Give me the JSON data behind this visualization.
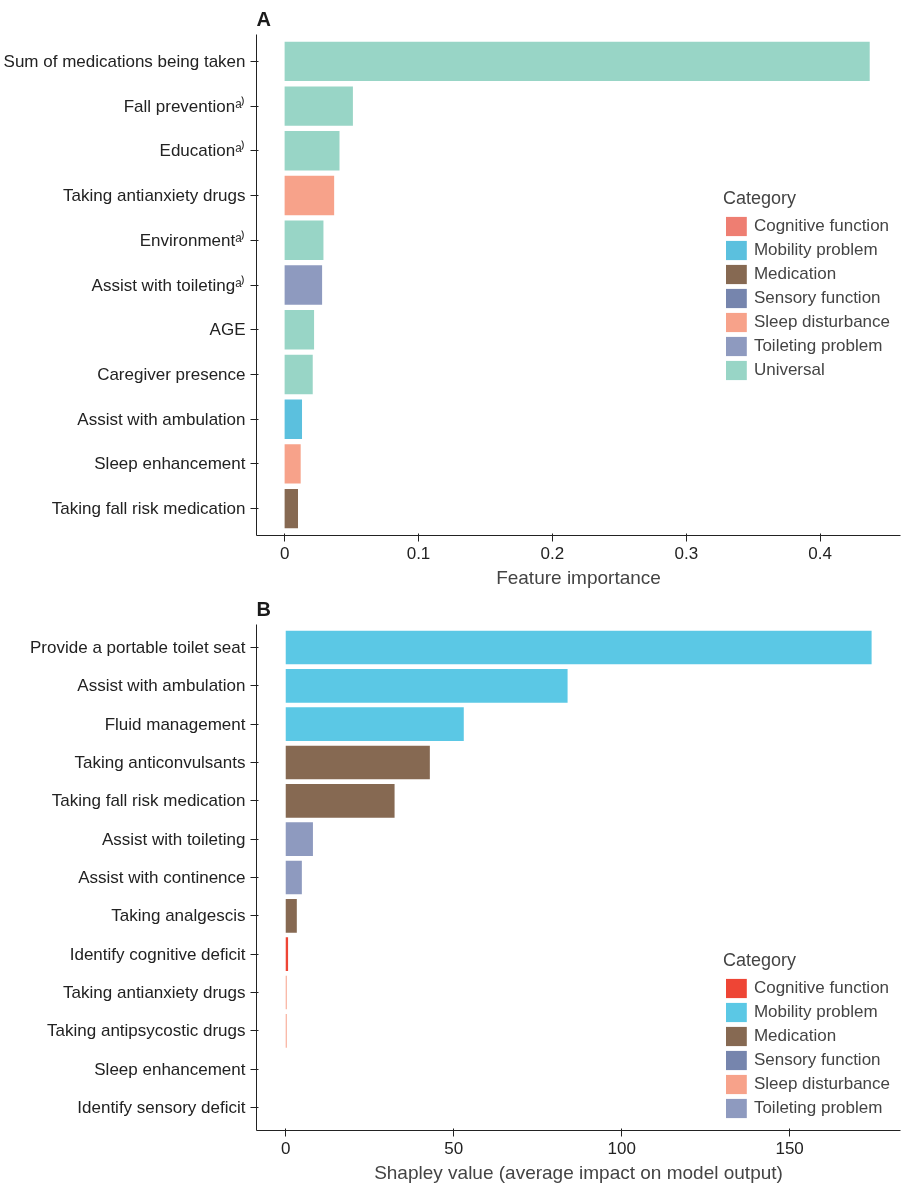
{
  "chart_data": [
    {
      "type": "bar",
      "title": "A",
      "orientation": "horizontal",
      "xlabel": "Feature importance",
      "legend_title": "Category",
      "legend": "right",
      "grid": false,
      "categories": [
        "Sum of medications being taken",
        "Fall preventionᵃ⁾",
        "Educationᵃ⁾",
        "Taking antianxiety drugs",
        "Environmentᵃ⁾",
        "Assist with toiletingᵃ⁾",
        "AGE",
        "Caregiver presence",
        "Assist with ambulation",
        "Sleep enhancement",
        "Taking fall risk medication"
      ],
      "xlim": [
        -0.021,
        0.46
      ],
      "xticks": [
        0,
        0.1,
        0.2,
        0.3,
        0.4
      ],
      "series": [
        {
          "name": "Cognitive function",
          "color": "#ee7e72",
          "values": [
            null,
            null,
            null,
            null,
            null,
            null,
            null,
            null,
            null,
            null,
            null
          ]
        },
        {
          "name": "Mobility problem",
          "color": "#5bc0de",
          "values": [
            null,
            null,
            null,
            null,
            null,
            null,
            null,
            null,
            0.013,
            null,
            null
          ]
        },
        {
          "name": "Medication",
          "color": "#866952",
          "values": [
            null,
            null,
            null,
            null,
            null,
            null,
            null,
            null,
            null,
            null,
            0.01
          ]
        },
        {
          "name": "Sensory function",
          "color": "#7685ad",
          "values": [
            null,
            null,
            null,
            null,
            null,
            null,
            null,
            null,
            null,
            null,
            null
          ]
        },
        {
          "name": "Sleep disturbance",
          "color": "#f7a28a",
          "values": [
            null,
            null,
            null,
            0.037,
            null,
            null,
            null,
            null,
            null,
            0.012,
            null
          ]
        },
        {
          "name": "Toileting problem",
          "color": "#8e9abf",
          "values": [
            null,
            null,
            null,
            null,
            null,
            0.028,
            null,
            null,
            null,
            null,
            null
          ]
        },
        {
          "name": "Universal",
          "color": "#98d5c6",
          "values": [
            0.437,
            0.051,
            0.041,
            null,
            0.029,
            null,
            0.022,
            0.021,
            null,
            null,
            null
          ]
        }
      ]
    },
    {
      "type": "bar",
      "title": "B",
      "orientation": "horizontal",
      "xlabel": "Shapley value (average impact on model output)",
      "legend_title": "Category",
      "legend": "bottom right",
      "grid": false,
      "categories": [
        "Provide a portable toilet seat",
        "Assist with ambulation",
        "Fluid management",
        "Taking anticonvulsants",
        "Taking fall risk medication",
        "Assist with toileting",
        "Assist with continence",
        "Taking analgescis",
        "Identify cognitive deficit",
        "Taking antianxiety drugs",
        "Taking antipsycostic drugs",
        "Sleep enhancement",
        "Identify sensory deficit"
      ],
      "xlim": [
        -8.7,
        183
      ],
      "xticks": [
        0,
        50,
        100,
        150
      ],
      "series": [
        {
          "name": "Cognitive function",
          "color": "#ee4535",
          "values": [
            null,
            null,
            null,
            null,
            null,
            null,
            null,
            null,
            0.7,
            null,
            null,
            null,
            null
          ]
        },
        {
          "name": "Mobility problem",
          "color": "#5bc8e5",
          "values": [
            174.4,
            83.9,
            53.0,
            null,
            null,
            null,
            null,
            null,
            null,
            null,
            null,
            null,
            null
          ]
        },
        {
          "name": "Medication",
          "color": "#866952",
          "values": [
            null,
            null,
            null,
            42.9,
            32.4,
            null,
            null,
            3.3,
            null,
            null,
            null,
            null,
            null
          ]
        },
        {
          "name": "Sensory function",
          "color": "#7685ad",
          "values": [
            null,
            null,
            null,
            null,
            null,
            null,
            null,
            null,
            null,
            null,
            null,
            null,
            0
          ]
        },
        {
          "name": "Sleep disturbance",
          "color": "#f7a28a",
          "values": [
            null,
            null,
            null,
            null,
            null,
            null,
            null,
            null,
            null,
            0.3,
            0.3,
            0,
            null
          ]
        },
        {
          "name": "Toileting problem",
          "color": "#8e9abf",
          "values": [
            null,
            null,
            null,
            null,
            null,
            8.1,
            4.8,
            null,
            null,
            null,
            null,
            null,
            null
          ]
        }
      ]
    }
  ]
}
